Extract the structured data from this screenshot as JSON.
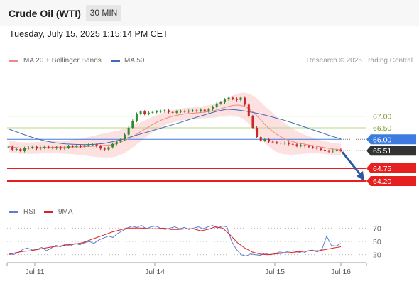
{
  "header": {
    "title": "Crude Oil (WTI)",
    "timeframe": "30 MIN",
    "datetime": "Tuesday, July 15, 2025 1:15:14 PM CET"
  },
  "legend": {
    "ma20_label": "MA 20 + Bollinger Bands",
    "ma50_label": "MA 50",
    "source": "Research © 2025 Trading Central"
  },
  "rsi_legend": {
    "rsi_label": "RSI",
    "ma_label": "9MA"
  },
  "colors": {
    "ma20": "#f08a80",
    "ma50": "#3d6cb9",
    "bollinger": "#fde0e0",
    "resistance": "#b5d98a",
    "pivot": "#3d7be0",
    "support": "#e62020",
    "current_price": "#333333",
    "candle_up": "#2e8b2e",
    "candle_down": "#c62828",
    "arrow": "#2c5aa0",
    "rsi_line": "#5b7fd6",
    "rsi_ma": "#e02020"
  },
  "chart_data": [
    {
      "type": "line",
      "name": "price",
      "x_ticks": [
        "Jul 11",
        "Jul 14",
        "Jul 15",
        "Jul 16"
      ],
      "ylim": [
        63.8,
        68.4
      ],
      "close": [
        65.68,
        65.55,
        65.58,
        65.5,
        65.62,
        65.64,
        65.68,
        65.6,
        65.63,
        65.68,
        65.65,
        65.62,
        65.66,
        65.6,
        65.64,
        65.7,
        65.67,
        65.72,
        65.68,
        65.74,
        65.76,
        65.78,
        65.7,
        65.6,
        65.56,
        65.66,
        65.8,
        65.9,
        66.0,
        66.2,
        66.5,
        66.8,
        67.1,
        67.2,
        67.1,
        67.15,
        67.18,
        67.2,
        67.22,
        67.25,
        67.18,
        67.15,
        67.2,
        67.22,
        67.2,
        67.23,
        67.25,
        67.22,
        67.28,
        67.2,
        67.3,
        67.4,
        67.55,
        67.6,
        67.72,
        67.8,
        67.75,
        67.7,
        67.8,
        67.5,
        67.0,
        66.5,
        66.1,
        65.95,
        66.0,
        65.9,
        65.88,
        65.85,
        65.82,
        65.85,
        65.8,
        65.78,
        65.72,
        65.75,
        65.7,
        65.68,
        65.65,
        65.6,
        65.55,
        65.5,
        65.48,
        65.52,
        65.55,
        65.51
      ],
      "series": [
        {
          "name": "MA 20",
          "values": [
            65.7,
            65.66,
            65.63,
            65.62,
            65.62,
            65.63,
            65.64,
            65.65,
            65.65,
            65.66,
            65.66,
            65.66,
            65.67,
            65.67,
            65.68,
            65.69,
            65.7,
            65.72,
            65.74,
            65.76,
            65.8,
            65.88,
            65.98,
            66.1,
            66.24,
            66.38,
            66.52,
            66.66,
            66.78,
            66.88,
            66.96,
            67.02,
            67.07,
            67.1,
            67.12,
            67.14,
            67.16,
            67.19,
            67.22,
            67.27,
            67.35,
            67.42,
            67.47,
            67.48,
            67.43,
            67.3,
            67.1,
            66.85,
            66.6,
            66.4,
            66.22,
            66.08,
            65.98,
            65.9,
            65.84,
            65.8,
            65.76,
            65.72,
            65.68,
            65.64,
            65.6,
            65.57,
            65.55
          ]
        },
        {
          "name": "MA 50",
          "values": [
            66.45,
            66.3,
            66.15,
            66.02,
            65.92,
            65.85,
            65.8,
            65.78,
            65.77,
            65.78,
            65.82,
            65.9,
            66.0,
            66.12,
            66.24,
            66.36,
            66.48,
            66.6,
            66.72,
            66.85,
            66.98,
            67.1,
            67.22,
            67.3,
            67.27,
            67.22,
            67.14,
            67.05,
            66.94,
            66.83,
            66.7,
            66.56,
            66.42,
            66.28,
            66.14,
            66.02
          ]
        }
      ],
      "levels": [
        {
          "label": "67.00",
          "value": 67.0,
          "kind": "resistance"
        },
        {
          "label": "66.50",
          "value": 66.5,
          "kind": "resistance"
        },
        {
          "label": "66.00",
          "value": 66.0,
          "kind": "pivot"
        },
        {
          "label": "65.51",
          "value": 65.51,
          "kind": "current"
        },
        {
          "label": "64.75",
          "value": 64.75,
          "kind": "support"
        },
        {
          "label": "64.20",
          "value": 64.2,
          "kind": "support"
        }
      ]
    },
    {
      "type": "line",
      "name": "RSI panel",
      "yticks": [
        "70",
        "50",
        "30"
      ],
      "ylim": [
        20,
        80
      ],
      "series": [
        {
          "name": "RSI",
          "values": [
            32,
            30,
            33,
            38,
            40,
            37,
            38,
            41,
            36,
            40,
            44,
            42,
            46,
            43,
            47,
            45,
            48,
            50,
            47,
            52,
            55,
            58,
            56,
            62,
            66,
            70,
            73,
            71,
            74,
            69,
            72,
            73,
            70,
            68,
            70,
            72,
            69,
            71,
            68,
            70,
            72,
            69,
            72,
            74,
            70,
            73,
            72,
            50,
            38,
            30,
            28,
            31,
            30,
            29,
            32,
            30,
            31,
            34,
            33,
            35,
            36,
            34,
            32,
            36,
            37,
            34,
            38,
            58,
            44,
            43,
            47
          ]
        },
        {
          "name": "9MA",
          "values": [
            30,
            33,
            35,
            36,
            38,
            40,
            42,
            43,
            45,
            46,
            48,
            52,
            56,
            60,
            64,
            67,
            70,
            70,
            70,
            69,
            69,
            70,
            68,
            68,
            69,
            69,
            66,
            68,
            72,
            70,
            60,
            48,
            40,
            34,
            31,
            30,
            31,
            32,
            33,
            34,
            35,
            36,
            36,
            38,
            40,
            42
          ]
        }
      ]
    }
  ]
}
